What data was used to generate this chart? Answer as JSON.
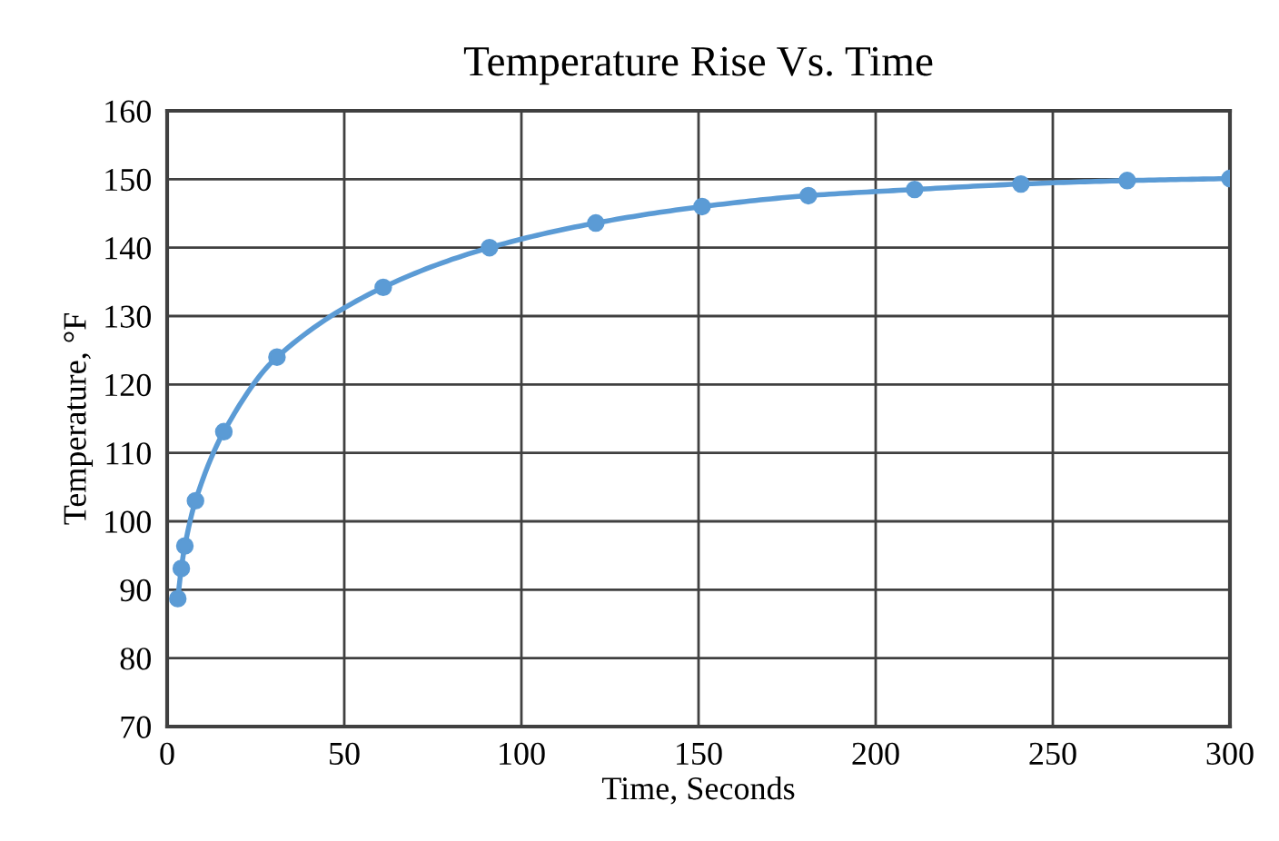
{
  "chart_data": {
    "type": "line",
    "title": "Temperature Rise Vs. Time",
    "xlabel": "Time, Seconds",
    "ylabel": "Temperature, °F",
    "x": [
      3,
      4,
      5,
      8,
      16,
      31,
      61,
      91,
      121,
      151,
      181,
      211,
      241,
      271,
      300
    ],
    "series": [
      {
        "color": "#5b9bd5",
        "values": [
          88.7,
          93.1,
          96.4,
          103,
          113.1,
          124,
          134.2,
          140,
          143.6,
          146,
          147.6,
          148.5,
          149.3,
          149.8,
          150.1
        ]
      }
    ],
    "xlim": [
      0,
      300
    ],
    "ylim": [
      70,
      160
    ],
    "xticks": [
      0,
      50,
      100,
      150,
      200,
      250,
      300
    ],
    "yticks": [
      70,
      80,
      90,
      100,
      110,
      120,
      130,
      140,
      150,
      160
    ],
    "grid": true,
    "marker": "circle",
    "line_style": "solid",
    "legend": false
  }
}
